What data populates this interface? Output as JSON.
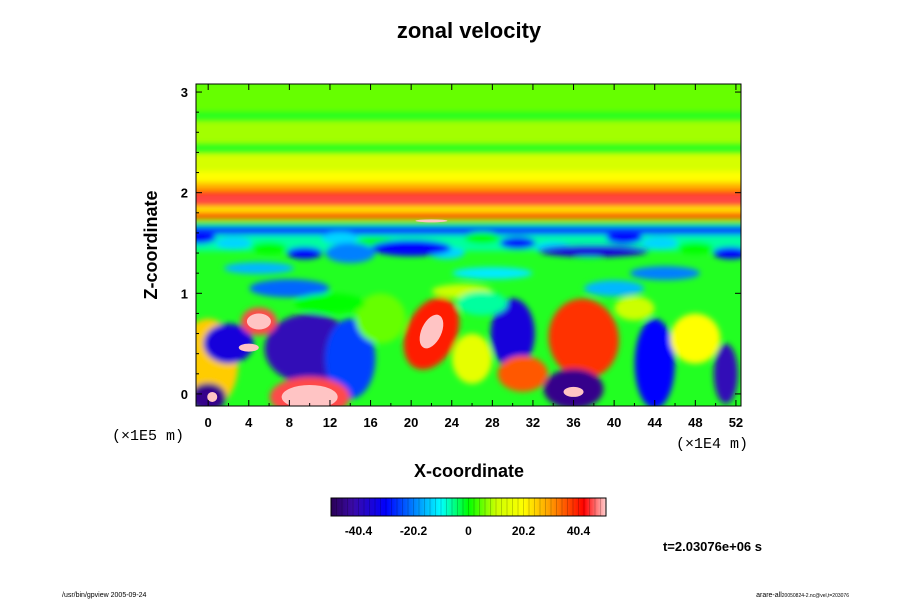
{
  "chart_data": {
    "type": "heatmap",
    "title": "zonal velocity",
    "xlabel": "X-coordinate",
    "ylabel": "Z-coordinate",
    "x_ticks": [
      "0",
      "4",
      "8",
      "12",
      "16",
      "20",
      "24",
      "28",
      "32",
      "36",
      "40",
      "44",
      "48",
      "52"
    ],
    "x_tick_values": [
      0,
      4,
      8,
      12,
      16,
      20,
      24,
      28,
      32,
      36,
      40,
      44,
      48,
      52
    ],
    "xlim": [
      -1.2,
      52.5
    ],
    "y_ticks": [
      "0",
      "1",
      "2",
      "3"
    ],
    "y_tick_values": [
      0,
      1,
      2,
      3
    ],
    "ylim": [
      -0.12,
      3.08
    ],
    "x_unit": "(×1E4 m)",
    "y_unit": "(×1E5 m)",
    "colorbar": {
      "ticks": [
        "-40.4",
        "-20.2",
        "0",
        "20.2",
        "40.4"
      ],
      "tick_values": [
        -40.4,
        -20.2,
        0,
        20.2,
        40.4
      ],
      "range": [
        -50.5,
        50.5
      ]
    },
    "time_label": "t=2.03076e+06 s",
    "features": [
      {
        "name": "upper jet core",
        "x_range": [
          -1.2,
          52.5
        ],
        "z": 1.93,
        "value": 45
      },
      {
        "name": "lower red band",
        "x_range": [
          -1.2,
          52.5
        ],
        "z": 1.78,
        "value": 35
      },
      {
        "name": "blue band",
        "x_range": [
          -1.2,
          52.5
        ],
        "z": 1.62,
        "value": -25
      },
      {
        "name": "positive lobe",
        "x": 22,
        "z": 0.6,
        "value": 45
      },
      {
        "name": "positive lobe",
        "x": 37,
        "z": 0.5,
        "value": 40
      },
      {
        "name": "positive lobe",
        "x": 5,
        "z": 0.72,
        "value": 45
      },
      {
        "name": "positive patch",
        "x": 10,
        "z": -0.02,
        "value": 45
      },
      {
        "name": "positive patch",
        "x": 31,
        "z": 0.2,
        "value": 35
      },
      {
        "name": "negative cell",
        "x": 10,
        "z": 0.45,
        "value": -40
      },
      {
        "name": "negative cell",
        "x": 37,
        "z": 0.02,
        "value": -45
      },
      {
        "name": "negative cell",
        "x": 30,
        "z": 0.6,
        "value": -35
      },
      {
        "name": "negative cell",
        "x": 0,
        "z": -0.02,
        "value": -45
      },
      {
        "name": "negative cell",
        "x": 51,
        "z": 0.05,
        "value": -40
      }
    ]
  },
  "footer": {
    "left": "/usr/bin/gpview 2005-09-24",
    "right_main": "arare-all",
    "right_sub": "20050824-2.nc@vel,t=203076"
  },
  "colors": {
    "scale": [
      "#1a0033",
      "#3a0a9a",
      "#0000ff",
      "#0099ff",
      "#00ffff",
      "#00ff00",
      "#ccff00",
      "#ffff00",
      "#ff8800",
      "#ff0000",
      "#ffffff"
    ]
  }
}
